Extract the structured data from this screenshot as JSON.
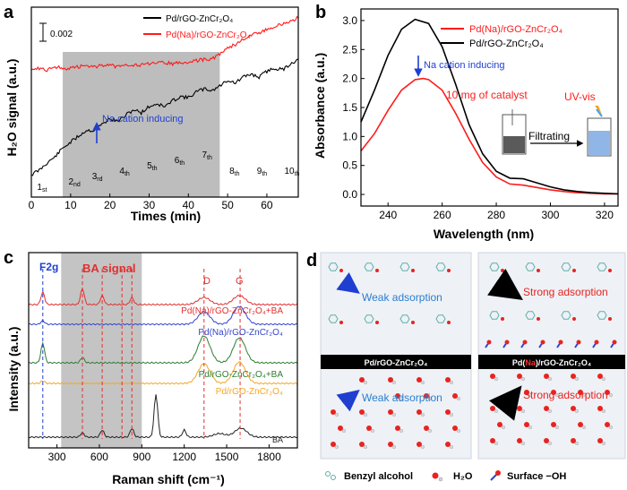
{
  "panels": {
    "a": "a",
    "b": "b",
    "c": "c",
    "d": "d"
  },
  "chart_data": [
    {
      "id": "a",
      "type": "line",
      "title": "",
      "xlabel": "Times (min)",
      "ylabel": "H₂O signal (a.u.)",
      "xlim": [
        0,
        68
      ],
      "xticks": [
        "0",
        "10",
        "20",
        "30",
        "40",
        "50",
        "60"
      ],
      "scale_bar_label": "0.002",
      "shaded_region": [
        8,
        48
      ],
      "annotation": "Na cation inducing",
      "pulses": [
        {
          "t": 1,
          "label": "1st"
        },
        {
          "t": 9,
          "label": "2nd"
        },
        {
          "t": 15,
          "label": "3rd"
        },
        {
          "t": 22,
          "label": "4th"
        },
        {
          "t": 29,
          "label": "5th"
        },
        {
          "t": 36,
          "label": "6th"
        },
        {
          "t": 43,
          "label": "7th"
        },
        {
          "t": 50,
          "label": "8th"
        },
        {
          "t": 57,
          "label": "9th"
        },
        {
          "t": 64,
          "label": "10th"
        }
      ],
      "series": [
        {
          "name": "Pd/rGO-ZnCr₂O₄",
          "color": "#000000",
          "x": [
            0,
            2,
            4,
            6,
            8,
            10,
            12,
            14,
            16,
            18,
            20,
            22,
            24,
            26,
            28,
            30,
            32,
            34,
            36,
            38,
            40,
            42,
            44,
            46,
            48,
            50,
            52,
            54,
            56,
            58,
            60,
            62,
            64,
            66,
            68
          ],
          "y": [
            0.0,
            0.0003,
            0.0008,
            0.0012,
            0.0018,
            0.0022,
            0.0026,
            0.003,
            0.003,
            0.0034,
            0.0038,
            0.0036,
            0.004,
            0.0044,
            0.0042,
            0.0046,
            0.0048,
            0.0046,
            0.005,
            0.0053,
            0.0052,
            0.0056,
            0.0058,
            0.0057,
            0.006,
            0.0064,
            0.0062,
            0.0066,
            0.0068,
            0.0066,
            0.007,
            0.0072,
            0.0071,
            0.0075,
            0.0078
          ]
        },
        {
          "name": "Pd(Na)/rGO-ZnCr₂O₄",
          "color": "#ff1a1a",
          "x": [
            0,
            2,
            4,
            6,
            8,
            10,
            12,
            14,
            16,
            18,
            20,
            22,
            24,
            26,
            28,
            30,
            32,
            34,
            36,
            38,
            40,
            42,
            44,
            46,
            48,
            50,
            52,
            54,
            56,
            58,
            60,
            62,
            64,
            66,
            68
          ],
          "y": [
            0.0072,
            0.0072,
            0.0071,
            0.0073,
            0.0072,
            0.0072,
            0.0073,
            0.0074,
            0.0073,
            0.0074,
            0.0074,
            0.0073,
            0.0075,
            0.0074,
            0.0074,
            0.0075,
            0.0075,
            0.0076,
            0.0075,
            0.0076,
            0.0076,
            0.0077,
            0.0078,
            0.0078,
            0.0082,
            0.0086,
            0.0088,
            0.0092,
            0.0094,
            0.0096,
            0.0098,
            0.01,
            0.0102,
            0.0104,
            0.0106
          ]
        }
      ]
    },
    {
      "id": "b",
      "type": "line",
      "xlabel": "Wavelength (nm)",
      "ylabel": "Absorbance (a.u.)",
      "xlim": [
        230,
        325
      ],
      "ylim": [
        -0.2,
        3.2
      ],
      "xticks": [
        "240",
        "260",
        "280",
        "300",
        "320"
      ],
      "yticks": [
        "0.0",
        "0.5",
        "1.0",
        "1.5",
        "2.0",
        "2.5",
        "3.0"
      ],
      "annotations": [
        "Na cation inducing",
        "10 mg of catalyst",
        "UV-vis",
        "Filtrating"
      ],
      "series": [
        {
          "name": "Pd(Na)/rGO-ZnCr₂O₄",
          "color": "#ff1a1a",
          "x": [
            230,
            235,
            240,
            245,
            250,
            253,
            255,
            260,
            265,
            270,
            275,
            280,
            285,
            290,
            295,
            300,
            305,
            310,
            315,
            320,
            325
          ],
          "y": [
            0.75,
            1.05,
            1.45,
            1.8,
            1.98,
            2.0,
            1.98,
            1.8,
            1.4,
            0.95,
            0.55,
            0.3,
            0.18,
            0.16,
            0.12,
            0.08,
            0.05,
            0.03,
            0.02,
            0.01,
            0.01
          ]
        },
        {
          "name": "Pd/rGO-ZnCr₂O₄",
          "color": "#000000",
          "x": [
            230,
            235,
            240,
            245,
            250,
            255,
            260,
            265,
            270,
            275,
            280,
            285,
            290,
            295,
            300,
            305,
            310,
            315,
            320,
            325
          ],
          "y": [
            1.25,
            1.8,
            2.4,
            2.85,
            3.02,
            2.95,
            2.55,
            1.9,
            1.2,
            0.7,
            0.4,
            0.28,
            0.27,
            0.2,
            0.13,
            0.08,
            0.05,
            0.03,
            0.02,
            0.01
          ]
        }
      ]
    },
    {
      "id": "c",
      "type": "line",
      "xlabel": "Raman shift (cm⁻¹)",
      "ylabel": "Intensity (a.u.)",
      "xlim": [
        100,
        2000
      ],
      "xticks": [
        "300",
        "600",
        "900",
        "1200",
        "1500",
        "1800"
      ],
      "shaded_region": [
        330,
        900
      ],
      "labels": {
        "f2g": "F2g",
        "ba_signal": "BA signal",
        "d": "D",
        "g": "G"
      },
      "series": [
        {
          "name": "Pd(Na)/rGO-ZnCr₂O₄+BA",
          "color": "#e0302f"
        },
        {
          "name": "Pd(Na)/rGO-ZnCr₂O₄",
          "color": "#3344cc"
        },
        {
          "name": "Pd/rGO-ZnCr₂O₄+BA",
          "color": "#2e7d32"
        },
        {
          "name": "Pd/rGO-ZnCr₂O₄",
          "color": "#f5a623"
        },
        {
          "name": "BA",
          "color": "#222222"
        }
      ]
    }
  ],
  "panel_d": {
    "left_bar": "Pd/rGO-ZnCr₂O₄",
    "right_bar_prefix": "Pd(",
    "right_bar_na": "Na",
    "right_bar_suffix": ")/rGO-ZnCr₂O₄",
    "weak_top": "Weak adsorption",
    "weak_bottom": "Weak adsorption",
    "strong_top": "Strong adsorption",
    "strong_bottom": "Strong adsorption",
    "legend": [
      "Benzyl alcohol",
      "H₂O",
      "Surface −OH"
    ]
  }
}
